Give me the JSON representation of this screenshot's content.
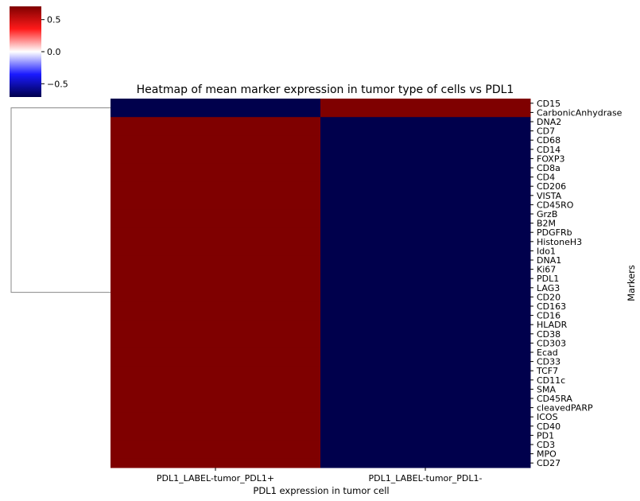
{
  "chart_data": {
    "type": "heatmap",
    "title": "Heatmap of mean marker expression in tumor type of cells vs PDL1",
    "xlabel": "PDL1 expression in tumor cell",
    "ylabel": "Markers",
    "columns": [
      "PDL1_LABEL-tumor_PDL1+",
      "PDL1_LABEL-tumor_PDL1-"
    ],
    "rows": [
      "CD15",
      "CarbonicAnhydrase",
      "DNA2",
      "CD7",
      "CD68",
      "CD14",
      "FOXP3",
      "CD8a",
      "CD4",
      "CD206",
      "VISTA",
      "CD45RO",
      "GrzB",
      "B2M",
      "PDGFRb",
      "HistoneH3",
      "Ido1",
      "DNA1",
      "Ki67",
      "PDL1",
      "LAG3",
      "CD20",
      "CD163",
      "CD16",
      "HLADR",
      "CD38",
      "CD303",
      "Ecad",
      "CD33",
      "TCF7",
      "CD11c",
      "SMA",
      "CD45RA",
      "cleavedPARP",
      "ICOS",
      "CD40",
      "PD1",
      "CD3",
      "MPO",
      "CD27"
    ],
    "values": [
      [
        -0.707,
        0.707
      ],
      [
        -0.707,
        0.707
      ],
      [
        0.707,
        -0.707
      ],
      [
        0.707,
        -0.707
      ],
      [
        0.707,
        -0.707
      ],
      [
        0.707,
        -0.707
      ],
      [
        0.707,
        -0.707
      ],
      [
        0.707,
        -0.707
      ],
      [
        0.707,
        -0.707
      ],
      [
        0.707,
        -0.707
      ],
      [
        0.707,
        -0.707
      ],
      [
        0.707,
        -0.707
      ],
      [
        0.707,
        -0.707
      ],
      [
        0.707,
        -0.707
      ],
      [
        0.707,
        -0.707
      ],
      [
        0.707,
        -0.707
      ],
      [
        0.707,
        -0.707
      ],
      [
        0.707,
        -0.707
      ],
      [
        0.707,
        -0.707
      ],
      [
        0.707,
        -0.707
      ],
      [
        0.707,
        -0.707
      ],
      [
        0.707,
        -0.707
      ],
      [
        0.707,
        -0.707
      ],
      [
        0.707,
        -0.707
      ],
      [
        0.707,
        -0.707
      ],
      [
        0.707,
        -0.707
      ],
      [
        0.707,
        -0.707
      ],
      [
        0.707,
        -0.707
      ],
      [
        0.707,
        -0.707
      ],
      [
        0.707,
        -0.707
      ],
      [
        0.707,
        -0.707
      ],
      [
        0.707,
        -0.707
      ],
      [
        0.707,
        -0.707
      ],
      [
        0.707,
        -0.707
      ],
      [
        0.707,
        -0.707
      ],
      [
        0.707,
        -0.707
      ],
      [
        0.707,
        -0.707
      ],
      [
        0.707,
        -0.707
      ],
      [
        0.707,
        -0.707
      ],
      [
        0.707,
        -0.707
      ]
    ],
    "colormap": "seismic",
    "colorbar": {
      "range": [
        -0.707,
        0.707
      ],
      "ticks": [
        "0.5",
        "0.0",
        "−0.5"
      ],
      "tick_values": [
        0.5,
        0.0,
        -0.5
      ]
    },
    "row_dendrogram": true,
    "row_clusters": [
      [
        "CD15",
        "CarbonicAnhydrase"
      ],
      [
        "DNA2",
        "CD7",
        "CD68",
        "CD14",
        "FOXP3",
        "CD8a",
        "CD4",
        "CD206",
        "VISTA",
        "CD45RO",
        "GrzB",
        "B2M",
        "PDGFRb",
        "HistoneH3",
        "Ido1",
        "DNA1",
        "Ki67",
        "PDL1",
        "LAG3",
        "CD20",
        "CD163",
        "CD16",
        "HLADR",
        "CD38",
        "CD303",
        "Ecad",
        "CD33",
        "TCF7",
        "CD11c",
        "SMA",
        "CD45RA",
        "cleavedPARP",
        "ICOS",
        "CD40",
        "PD1",
        "CD3",
        "MPO",
        "CD27"
      ]
    ]
  }
}
